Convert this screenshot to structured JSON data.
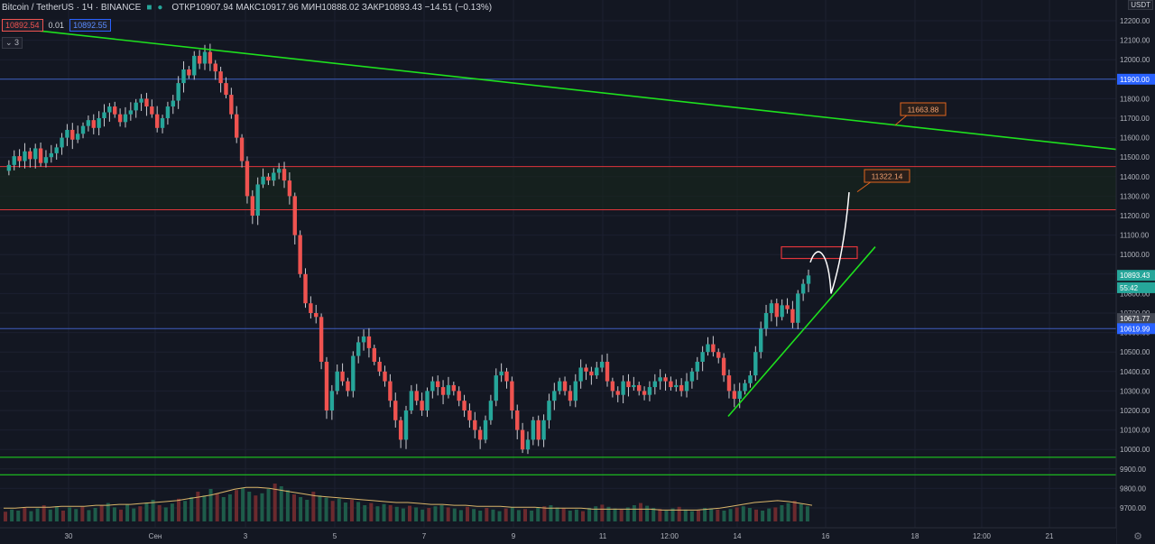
{
  "header": {
    "symbol": "Bitcoin / TetherUS · 1Ч · BINANCE",
    "ohlc": "ОТКР10907.94 МАКС10917.96 МИН10888.02 ЗАКР10893.43 −14.51 (−0.13%)",
    "bid": "10892.54",
    "spread": "0.01",
    "ask": "10892.55",
    "indicators_toggle": "⌄ 3"
  },
  "axis_unit": "USDT",
  "settings_icon": "gear-icon",
  "colors": {
    "background": "#131722",
    "up": "#26a69a",
    "down": "#ef5350",
    "green_line": "#1ee01e",
    "red_line": "#e0353b",
    "blue_line": "#3f5fbf",
    "white_path": "#ffffff",
    "callout": "#e0641e"
  },
  "chart_data": {
    "type": "candlestick",
    "y_axis": {
      "ticks": [
        "12200.00",
        "12100.00",
        "12000.00",
        "11900.00",
        "11800.00",
        "11700.00",
        "11600.00",
        "11500.00",
        "11400.00",
        "11300.00",
        "11200.00",
        "11100.00",
        "11000.00",
        "10900.00",
        "10800.00",
        "10700.00",
        "10600.00",
        "10500.00",
        "10400.00",
        "10300.00",
        "10200.00",
        "10100.00",
        "10000.00",
        "9900.00",
        "9800.00",
        "9700.00"
      ],
      "range": [
        9630,
        12300
      ]
    },
    "x_axis": {
      "ticks": [
        "30",
        "Сен",
        "3",
        "5",
        "7",
        "9",
        "11",
        "12:00",
        "14",
        "16",
        "18",
        "12:00",
        "21"
      ]
    },
    "price_labels": [
      {
        "text": "11900.00",
        "value": 11900,
        "color": "#2962ff"
      },
      {
        "text": "10893.43",
        "value": 10893.43,
        "color": "#26a69a"
      },
      {
        "text": "55:42",
        "value": 10830,
        "color": "#26a69a"
      },
      {
        "text": "10671.77",
        "value": 10671.77,
        "color": "#444853"
      },
      {
        "text": "10619.99",
        "value": 10619.99,
        "color": "#2962ff"
      }
    ],
    "horizontal_levels": [
      {
        "value": 11900,
        "color": "#3f5fbf"
      },
      {
        "value": 11452,
        "color": "#e0353b"
      },
      {
        "value": 11230,
        "color": "#e0353b"
      },
      {
        "value": 10620,
        "color": "#3f5fbf"
      },
      {
        "value": 9960,
        "color": "#1ee01e"
      },
      {
        "value": 9870,
        "color": "#1ee01e"
      }
    ],
    "callouts": [
      {
        "text": "11663.88",
        "value": 11663.88
      },
      {
        "text": "11322.14",
        "value": 11322.14
      }
    ],
    "price_path": [
      11430,
      11460,
      11505,
      11480,
      11530,
      11490,
      11545,
      11470,
      11500,
      11520,
      11550,
      11600,
      11640,
      11590,
      11620,
      11660,
      11690,
      11650,
      11700,
      11730,
      11760,
      11720,
      11680,
      11720,
      11740,
      11780,
      11800,
      11760,
      11720,
      11650,
      11700,
      11760,
      11790,
      11880,
      11950,
      11920,
      12020,
      11980,
      12040,
      11980,
      11940,
      11880,
      11820,
      11720,
      11600,
      11480,
      11300,
      11200,
      11360,
      11400,
      11380,
      11420,
      11440,
      11380,
      11300,
      11100,
      10900,
      10750,
      10700,
      10680,
      10450,
      10200,
      10300,
      10400,
      10350,
      10300,
      10480,
      10550,
      10580,
      10520,
      10450,
      10400,
      10350,
      10250,
      10150,
      10050,
      10200,
      10300,
      10250,
      10200,
      10300,
      10350,
      10320,
      10280,
      10330,
      10300,
      10250,
      10200,
      10150,
      10100,
      10050,
      10150,
      10250,
      10380,
      10400,
      10350,
      10200,
      10100,
      10000,
      10050,
      10150,
      10050,
      10150,
      10250,
      10300,
      10350,
      10300,
      10250,
      10350,
      10420,
      10400,
      10380,
      10420,
      10450,
      10350,
      10300,
      10280,
      10350,
      10320,
      10330,
      10300,
      10280,
      10320,
      10350,
      10370,
      10350,
      10320,
      10330,
      10300,
      10350,
      10400,
      10450,
      10500,
      10540,
      10500,
      10470,
      10380,
      10300,
      10260,
      10300,
      10340,
      10380,
      10500,
      10620,
      10700,
      10750,
      10680,
      10740,
      10720,
      10650,
      10800,
      10850,
      10893
    ],
    "volume": [
      18,
      22,
      20,
      25,
      19,
      24,
      30,
      22,
      28,
      20,
      26,
      23,
      27,
      21,
      25,
      30,
      34,
      26,
      22,
      31,
      24,
      28,
      35,
      40,
      30,
      26,
      33,
      42,
      38,
      45,
      55,
      48,
      60,
      52,
      45,
      50,
      58,
      62,
      55,
      48,
      52,
      60,
      70,
      65,
      58,
      50,
      45,
      40,
      55,
      48,
      44,
      38,
      42,
      35,
      40,
      36,
      30,
      34,
      28,
      32,
      30,
      27,
      24,
      29,
      26,
      22,
      25,
      28,
      30,
      26,
      24,
      21,
      27,
      23,
      20,
      25,
      22,
      19,
      24,
      26,
      21,
      23,
      20,
      25,
      28,
      30,
      26,
      24,
      20,
      22,
      19,
      25,
      28,
      31,
      27,
      24,
      22,
      26,
      30,
      34,
      29,
      25,
      23,
      20,
      24,
      27,
      22,
      19,
      21,
      25,
      24,
      22,
      20,
      23,
      26,
      28,
      25,
      22,
      20,
      24,
      26,
      30,
      34,
      38,
      32,
      28
    ],
    "volume_ma": [
      14,
      14,
      15,
      15,
      15,
      16,
      16,
      16,
      17,
      17,
      18,
      18,
      19,
      20,
      21,
      22,
      24,
      26,
      28,
      31,
      34,
      36,
      36,
      35,
      33,
      31,
      29,
      27,
      26,
      25,
      24,
      23,
      22,
      21,
      20,
      20,
      19,
      18,
      18,
      17,
      17,
      16,
      16,
      16,
      15,
      15,
      15,
      14,
      14,
      14,
      14,
      13,
      13,
      13,
      13,
      13,
      13,
      12,
      12,
      12,
      12,
      13,
      14,
      16,
      18,
      20,
      21,
      22,
      21,
      19,
      17
    ]
  }
}
